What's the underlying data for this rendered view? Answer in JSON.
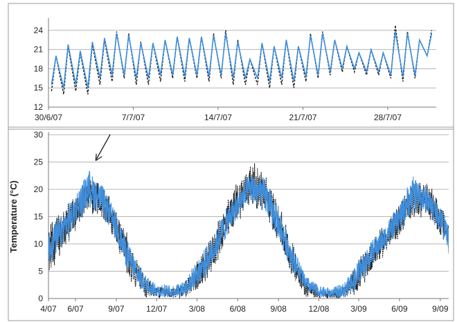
{
  "colors": {
    "observed": "#1a1a1a",
    "modelled": "#3d8fe0",
    "grid": "#b5b5b5",
    "frame": "#9a9a9a"
  },
  "chart_data": [
    {
      "type": "line",
      "panel": "top",
      "xlabel": "",
      "ylabel": "",
      "ylim": [
        12,
        25.5
      ],
      "yticks": [
        12,
        15,
        18,
        21,
        24
      ],
      "grid": true,
      "x_range": [
        "2007-06-30",
        "2007-08-01"
      ],
      "x_tick_labels": [
        {
          "date": "2007-06-30",
          "label": "30/6/07"
        },
        {
          "date": "2007-07-07",
          "label": "7/7/07"
        },
        {
          "date": "2007-07-14",
          "label": "14/7/07"
        },
        {
          "date": "2007-07-21",
          "label": "21/7/07"
        },
        {
          "date": "2007-07-28",
          "label": "28/7/07"
        }
      ],
      "series": [
        {
          "style": "dashed",
          "color": "#1a1a1a",
          "x": [
            "2007-06-30",
            "2007-07-01",
            "2007-07-02",
            "2007-07-03",
            "2007-07-04",
            "2007-07-05",
            "2007-07-06",
            "2007-07-07",
            "2007-07-08",
            "2007-07-09",
            "2007-07-10",
            "2007-07-11",
            "2007-07-12",
            "2007-07-13",
            "2007-07-14",
            "2007-07-15",
            "2007-07-16",
            "2007-07-17",
            "2007-07-18",
            "2007-07-19",
            "2007-07-20",
            "2007-07-21",
            "2007-07-22",
            "2007-07-23",
            "2007-07-24",
            "2007-07-25",
            "2007-07-26",
            "2007-07-27",
            "2007-07-28",
            "2007-07-29",
            "2007-07-30",
            "2007-07-31"
          ],
          "daily_max": [
            20,
            21.5,
            20.5,
            21.8,
            22.5,
            23.8,
            23.5,
            22.2,
            22,
            22.5,
            23,
            22.8,
            23,
            23.5,
            24,
            22.5,
            19.5,
            22,
            21.5,
            22.5,
            21.5,
            23.5,
            23.8,
            22.5,
            21.5,
            20.5,
            21,
            20.5,
            24.8,
            23.8,
            22.5,
            24
          ],
          "daily_min": [
            14.5,
            14,
            14.5,
            14,
            15.5,
            16,
            16.5,
            15.5,
            15.5,
            16,
            16.5,
            16,
            16.5,
            16,
            16.5,
            15.5,
            15.5,
            15.5,
            15,
            15.5,
            15,
            16,
            16.5,
            17,
            17.5,
            17.5,
            17,
            17,
            16.5,
            16,
            16.5,
            20
          ]
        },
        {
          "style": "solid",
          "color": "#3d8fe0",
          "x": [
            "2007-06-30",
            "2007-07-01",
            "2007-07-02",
            "2007-07-03",
            "2007-07-04",
            "2007-07-05",
            "2007-07-06",
            "2007-07-07",
            "2007-07-08",
            "2007-07-09",
            "2007-07-10",
            "2007-07-11",
            "2007-07-12",
            "2007-07-13",
            "2007-07-14",
            "2007-07-15",
            "2007-07-16",
            "2007-07-17",
            "2007-07-18",
            "2007-07-19",
            "2007-07-20",
            "2007-07-21",
            "2007-07-22",
            "2007-07-23",
            "2007-07-24",
            "2007-07-25",
            "2007-07-26",
            "2007-07-27",
            "2007-07-28",
            "2007-07-29",
            "2007-07-30",
            "2007-07-31"
          ],
          "daily_max": [
            20,
            21.8,
            20.8,
            22.2,
            22.8,
            23.5,
            23.2,
            22,
            22,
            22.5,
            23,
            22.8,
            23,
            23.2,
            23.5,
            22.2,
            19.5,
            22,
            21.5,
            22.5,
            21.5,
            23.2,
            23.5,
            22.5,
            21.5,
            20.5,
            21,
            20.5,
            23.8,
            23.5,
            22.5,
            23.5
          ],
          "daily_min": [
            15.5,
            15,
            15.5,
            15,
            16.5,
            17,
            17,
            16.5,
            16.5,
            17,
            17,
            16.8,
            17,
            16.8,
            17,
            16.5,
            16.5,
            16.5,
            16,
            16.5,
            16,
            16.8,
            17,
            17.5,
            18,
            18,
            17.5,
            17.5,
            17,
            16.8,
            17,
            20
          ]
        }
      ]
    },
    {
      "type": "line",
      "panel": "bottom",
      "xlabel": "",
      "ylabel": "Temperature (°C)",
      "ylim": [
        0,
        30
      ],
      "yticks": [
        0,
        5,
        10,
        15,
        20,
        25,
        30
      ],
      "grid": true,
      "x_range": [
        "2007-04-01",
        "2009-09-20"
      ],
      "x_tick_labels": [
        {
          "date": "2007-04-01",
          "label": "4/07"
        },
        {
          "date": "2007-06-01",
          "label": "6/07"
        },
        {
          "date": "2007-09-01",
          "label": "9/07"
        },
        {
          "date": "2007-12-01",
          "label": "12/07"
        },
        {
          "date": "2008-03-01",
          "label": "3/08"
        },
        {
          "date": "2008-06-01",
          "label": "6/08"
        },
        {
          "date": "2008-09-01",
          "label": "9/08"
        },
        {
          "date": "2008-12-01",
          "label": "12/08"
        },
        {
          "date": "2009-03-01",
          "label": "3/09"
        },
        {
          "date": "2009-06-01",
          "label": "6/09"
        },
        {
          "date": "2009-09-01",
          "label": "9/09"
        }
      ],
      "annotation": {
        "type": "arrow",
        "target_date": "2007-07-15",
        "target_value": 25
      },
      "series": [
        {
          "style": "dashed",
          "color": "#1a1a1a",
          "x": [
            "2007-04-01",
            "2007-05-01",
            "2007-06-01",
            "2007-07-01",
            "2007-08-01",
            "2007-09-01",
            "2007-10-01",
            "2007-11-01",
            "2007-12-01",
            "2008-01-01",
            "2008-02-01",
            "2008-03-01",
            "2008-04-01",
            "2008-05-01",
            "2008-06-01",
            "2008-07-01",
            "2008-08-01",
            "2008-09-01",
            "2008-10-01",
            "2008-11-01",
            "2008-12-01",
            "2009-01-01",
            "2009-02-01",
            "2009-03-01",
            "2009-04-01",
            "2009-05-01",
            "2009-06-01",
            "2009-07-01",
            "2009-08-01",
            "2009-09-01",
            "2009-09-20"
          ],
          "upper": [
            14,
            16,
            20,
            22.5,
            21.5,
            17,
            11,
            5,
            2.5,
            2,
            3,
            7,
            11,
            17,
            22,
            25.5,
            23.5,
            18,
            11,
            4,
            1.5,
            1.5,
            3,
            7.5,
            11,
            14,
            18,
            22,
            21.5,
            18,
            14
          ],
          "lower": [
            4,
            8,
            12,
            15.5,
            14.5,
            9,
            3,
            0,
            0,
            0,
            0,
            1,
            4,
            9,
            14,
            16.5,
            15,
            10,
            4,
            0,
            0,
            0,
            0,
            1,
            5,
            8,
            11,
            14.5,
            15,
            11,
            8
          ]
        },
        {
          "style": "solid",
          "color": "#3d8fe0",
          "x": [
            "2007-04-01",
            "2007-05-01",
            "2007-06-01",
            "2007-07-01",
            "2007-08-01",
            "2007-09-01",
            "2007-10-01",
            "2007-11-01",
            "2007-12-01",
            "2008-01-01",
            "2008-02-01",
            "2008-03-01",
            "2008-04-01",
            "2008-05-01",
            "2008-06-01",
            "2008-07-01",
            "2008-08-01",
            "2008-09-01",
            "2008-10-01",
            "2008-11-01",
            "2008-12-01",
            "2009-01-01",
            "2009-02-01",
            "2009-03-01",
            "2009-04-01",
            "2009-05-01",
            "2009-06-01",
            "2009-07-01",
            "2009-08-01",
            "2009-09-01",
            "2009-09-20"
          ],
          "upper": [
            13,
            15.5,
            19.5,
            24,
            21,
            16,
            10,
            5,
            3,
            2.5,
            3.5,
            7,
            11,
            16,
            20,
            23.5,
            22.5,
            17,
            10.5,
            4.5,
            2.5,
            2,
            3.5,
            7.5,
            11,
            14,
            17.5,
            23,
            21,
            17.5,
            13.5
          ],
          "lower": [
            5,
            9,
            13,
            16.5,
            15,
            10,
            4,
            1,
            0,
            0,
            0,
            2,
            5,
            10,
            14.5,
            17,
            15.5,
            10.5,
            5,
            1,
            0,
            0,
            0,
            2,
            6,
            9,
            12,
            15.5,
            15.5,
            12,
            9
          ]
        }
      ]
    }
  ]
}
